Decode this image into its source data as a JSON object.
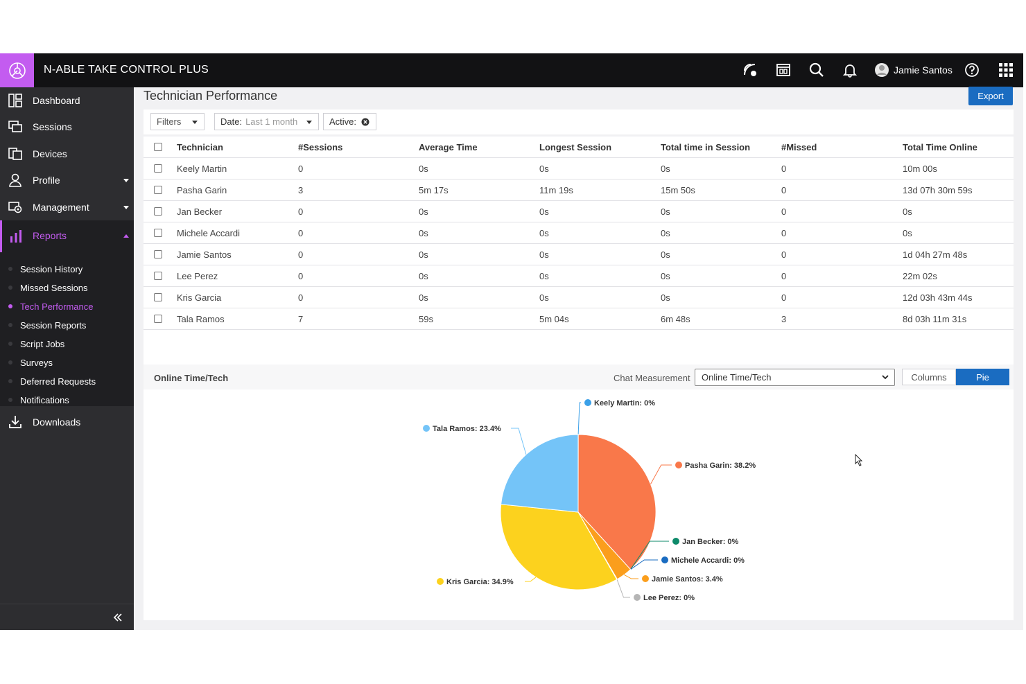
{
  "app": {
    "title": "N-ABLE TAKE CONTROL PLUS",
    "user": "Jamie Santos"
  },
  "topbar_icons": [
    "remote-connect-icon",
    "screen-icon",
    "search-icon",
    "bell-icon",
    "user-avatar-icon",
    "help-icon",
    "app-grid-icon"
  ],
  "sidebar": {
    "items": [
      {
        "label": "Dashboard",
        "icon": "dashboard-icon"
      },
      {
        "label": "Sessions",
        "icon": "sessions-icon"
      },
      {
        "label": "Devices",
        "icon": "devices-icon"
      },
      {
        "label": "Profile",
        "icon": "profile-icon"
      },
      {
        "label": "Management",
        "icon": "management-icon"
      },
      {
        "label": "Reports",
        "icon": "reports-icon"
      },
      {
        "label": "Downloads",
        "icon": "download-icon"
      }
    ],
    "reports_sub": [
      "Session History",
      "Missed Sessions",
      "Tech Performance",
      "Session Reports",
      "Script Jobs",
      "Surveys",
      "Deferred Requests",
      "Notifications"
    ],
    "active_sub": "Tech Performance"
  },
  "page": {
    "title": "Technician Performance",
    "export_label": "Export",
    "filters_label": "Filters",
    "date_label": "Date:",
    "date_value": "Last 1 month",
    "active_label": "Active:"
  },
  "table": {
    "headers": [
      "Technician",
      "#Sessions",
      "Average Time",
      "Longest Session",
      "Total time in Session",
      "#Missed",
      "Total Time Online"
    ],
    "rows": [
      [
        "Keely Martin",
        "0",
        "0s",
        "0s",
        "0s",
        "0",
        "10m 00s"
      ],
      [
        "Pasha Garin",
        "3",
        "5m 17s",
        "11m 19s",
        "15m 50s",
        "0",
        "13d 07h 30m 59s"
      ],
      [
        "Jan Becker",
        "0",
        "0s",
        "0s",
        "0s",
        "0",
        "0s"
      ],
      [
        "Michele Accardi",
        "0",
        "0s",
        "0s",
        "0s",
        "0",
        "0s"
      ],
      [
        "Jamie Santos",
        "0",
        "0s",
        "0s",
        "0s",
        "0",
        "1d 04h 27m 48s"
      ],
      [
        "Lee Perez",
        "0",
        "0s",
        "0s",
        "0s",
        "0",
        "22m 02s"
      ],
      [
        "Kris Garcia",
        "0",
        "0s",
        "0s",
        "0s",
        "0",
        "12d 03h 43m 44s"
      ],
      [
        "Tala Ramos",
        "7",
        "59s",
        "5m 04s",
        "6m 48s",
        "3",
        "8d 03h 11m 31s"
      ]
    ]
  },
  "chart_section": {
    "title": "Online Time/Tech",
    "measurement_label": "Chat Measurement",
    "measurement_value": "Online Time/Tech",
    "view_columns": "Columns",
    "view_pie": "Pie",
    "active_view": "Pie"
  },
  "chart_data": {
    "type": "pie",
    "title": "",
    "slices": [
      {
        "name": "Keely Martin",
        "label": "Keely Martin: 0%",
        "value": 0.03,
        "color": "#3aa0e8"
      },
      {
        "name": "Pasha Garin",
        "label": "Pasha Garin: 38.2%",
        "value": 38.2,
        "color": "#f9784a"
      },
      {
        "name": "Jan Becker",
        "label": "Jan Becker: 0%",
        "value": 0,
        "color": "#0e8a6a"
      },
      {
        "name": "Michele Accardi",
        "label": "Michele Accardi: 0%",
        "value": 0,
        "color": "#1a6cc1"
      },
      {
        "name": "Jamie Santos",
        "label": "Jamie Santos: 3.4%",
        "value": 3.4,
        "color": "#fb9e1c"
      },
      {
        "name": "Lee Perez",
        "label": "Lee Perez: 0%",
        "value": 0.1,
        "color": "#b5b5b5"
      },
      {
        "name": "Kris Garcia",
        "label": "Kris Garcia: 34.9%",
        "value": 34.9,
        "color": "#fcd21e"
      },
      {
        "name": "Tala Ramos",
        "label": "Tala Ramos: 23.4%",
        "value": 23.4,
        "color": "#74c4f8"
      }
    ]
  },
  "colors": {
    "accent": "#c35cf0",
    "primary": "#1a6cc1",
    "topbar": "#121214",
    "sidebar": "#2d2d30"
  }
}
